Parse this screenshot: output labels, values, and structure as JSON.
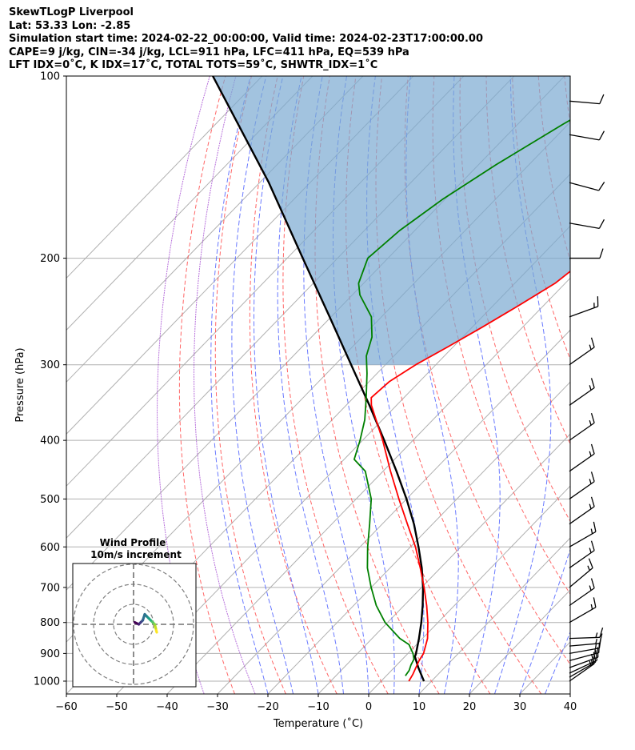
{
  "header": {
    "line1": "SkewTLogP Liverpool",
    "line2": "Lat: 53.33   Lon: -2.85",
    "line3": "Simulation start time: 2024-02-22_00:00:00, Valid time: 2024-02-23T17:00:00.00",
    "line4": "CAPE=9 j/kg, CIN=-34 j/kg, LCL=911 hPa, LFC=411 hPa, EQ=539 hPa",
    "line5": "LFT IDX=0˚C, K IDX=17˚C, TOTAL TOTS=59˚C, SHWTR_IDX=1˚C"
  },
  "chart_data": {
    "type": "skewt-logp",
    "xlabel": "Temperature (˚C)",
    "ylabel": "Pressure (hPa)",
    "xlim": [
      -60,
      40
    ],
    "ylim": [
      1050,
      100
    ],
    "x_ticks": [
      -60,
      -50,
      -40,
      -30,
      -20,
      -10,
      0,
      10,
      20,
      30,
      40
    ],
    "x_tick_labels": [
      "−60",
      "−50",
      "−40",
      "−30",
      "−20",
      "−10",
      "0",
      "10",
      "20",
      "30",
      "40"
    ],
    "y_ticks": [
      1000,
      900,
      800,
      700,
      600,
      500,
      400,
      300,
      200,
      100
    ],
    "y_tick_labels": [
      "1000",
      "900",
      "800",
      "700",
      "600",
      "500",
      "400",
      "300",
      "200",
      "100"
    ],
    "log_y": true,
    "grid": true,
    "temperature": {
      "color": "#ff0000",
      "p": [
        1000,
        975,
        950,
        925,
        900,
        850,
        800,
        750,
        700,
        650,
        600,
        550,
        500,
        450,
        400,
        350,
        340,
        320,
        300,
        280,
        260,
        240,
        220,
        200,
        180,
        160,
        140,
        120,
        100
      ],
      "t": [
        5.5,
        5.0,
        4.3,
        3.6,
        3.1,
        1.0,
        -2.0,
        -5.5,
        -9.5,
        -14.0,
        -19.0,
        -25.0,
        -31.5,
        -38.5,
        -46.0,
        -55.0,
        -56.5,
        -56.0,
        -54.0,
        -51.0,
        -48.0,
        -45.0,
        -42.0,
        -40.5,
        -39.5,
        -39.0,
        -37.5,
        -36.5,
        -34.5
      ]
    },
    "dewpoint": {
      "color": "#008000",
      "p": [
        980,
        960,
        940,
        920,
        900,
        870,
        850,
        800,
        750,
        700,
        650,
        600,
        550,
        500,
        450,
        430,
        400,
        370,
        340,
        310,
        290,
        270,
        250,
        230,
        220,
        200,
        180,
        160,
        140,
        120,
        100
      ],
      "t": [
        3.8,
        3.5,
        2.8,
        2.3,
        1.0,
        -1.5,
        -4.5,
        -10.5,
        -15.5,
        -20.0,
        -24.5,
        -28.5,
        -32.5,
        -37.0,
        -43.5,
        -48.0,
        -50.5,
        -53.5,
        -57.5,
        -62.0,
        -65.5,
        -68.0,
        -72.0,
        -78.5,
        -81.0,
        -84.0,
        -83.0,
        -80.5,
        -76.5,
        -71.0,
        -63.5
      ]
    },
    "parcel": {
      "color": "#000000",
      "p": [
        1000,
        950,
        911,
        900,
        850,
        800,
        750,
        700,
        650,
        600,
        550,
        500,
        450,
        400,
        350,
        300,
        250,
        200,
        150,
        100
      ],
      "t": [
        8.5,
        4.8,
        2.0,
        1.6,
        -0.7,
        -3.3,
        -6.3,
        -9.7,
        -13.7,
        -18.4,
        -23.7,
        -30.0,
        -37.3,
        -45.7,
        -55.4,
        -66.8,
        -80.3,
        -96.9,
        -118.2,
        -149.8
      ]
    },
    "cape_shading_color": "#7aa9d2",
    "wind_barbs": {
      "p": [
        1000,
        985,
        970,
        950,
        925,
        900,
        875,
        850,
        800,
        750,
        700,
        650,
        600,
        550,
        500,
        450,
        400,
        350,
        300,
        250,
        200,
        175,
        150,
        125,
        110
      ],
      "speed_kt": [
        15,
        15,
        15,
        15,
        15,
        15,
        15,
        15,
        15,
        15,
        15,
        15,
        15,
        15,
        15,
        15,
        15,
        15,
        15,
        15,
        10,
        10,
        10,
        10,
        10
      ],
      "direction_deg": [
        235,
        240,
        245,
        250,
        255,
        260,
        265,
        268,
        240,
        235,
        230,
        235,
        240,
        235,
        235,
        235,
        235,
        235,
        235,
        250,
        270,
        280,
        285,
        280,
        275
      ]
    },
    "hodograph": {
      "title_line1": "Wind Profile",
      "title_line2": "10m/s increment",
      "u": [
        6,
        5.5,
        5,
        4,
        3,
        2,
        1,
        0,
        -1,
        -2,
        -3,
        -4,
        -5
      ],
      "v": [
        -4,
        -2,
        0,
        1,
        2,
        3,
        4,
        5,
        2,
        1,
        0,
        0.5,
        1
      ]
    }
  }
}
